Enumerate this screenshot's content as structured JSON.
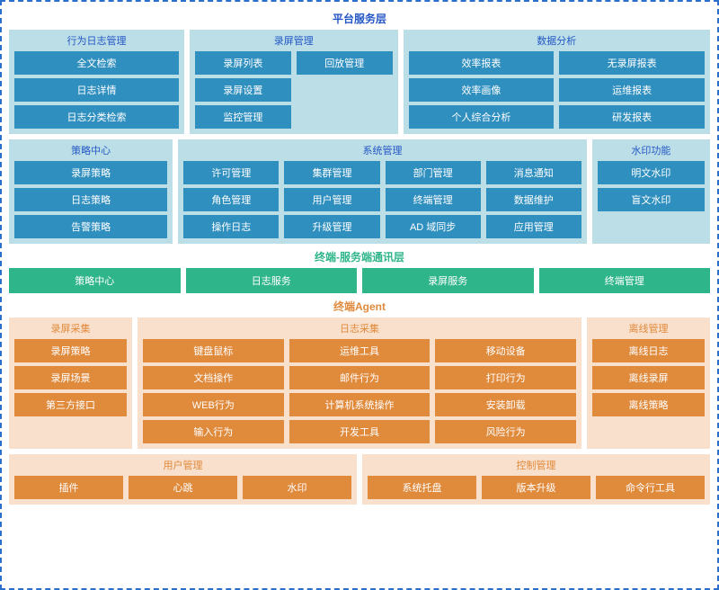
{
  "colors": {
    "border_dash": "#2a6fcc",
    "platform_title": "#2457c5",
    "platform_group_bg": "#bcdfe7",
    "platform_item_bg": "#2f8fbf",
    "terminal_title": "#2fb58a",
    "terminal_item_bg": "#2fb58a",
    "agent_title": "#e08a3c",
    "agent_group_bg": "#f9e0cc",
    "agent_item_bg": "#e08a3c"
  },
  "platform": {
    "title": "平台服务层",
    "row1": [
      {
        "title": "行为日志管理",
        "flex": 1,
        "items": [
          "全文检索",
          "日志详情",
          "日志分类检索"
        ]
      },
      {
        "title": "录屏管理",
        "flex": 1.2,
        "cols": [
          [
            "录屏列表",
            "录屏设置",
            "监控管理"
          ],
          [
            "回放管理"
          ]
        ]
      },
      {
        "title": "数据分析",
        "flex": 1.8,
        "cols": [
          [
            "效率报表",
            "效率画像",
            "个人综合分析"
          ],
          [
            "无录屏报表",
            "运维报表",
            "研发报表"
          ]
        ]
      }
    ],
    "row2": [
      {
        "title": "策略中心",
        "flex": 1,
        "items": [
          "录屏策略",
          "日志策略",
          "告警策略"
        ]
      },
      {
        "title": "系统管理",
        "flex": 2.6,
        "cols": [
          [
            "许可管理",
            "角色管理",
            "操作日志"
          ],
          [
            "集群管理",
            "用户管理",
            "升级管理"
          ],
          [
            "部门管理",
            "终端管理",
            "AD 域同步"
          ],
          [
            "消息通知",
            "数据维护",
            "应用管理"
          ]
        ]
      },
      {
        "title": "水印功能",
        "flex": 0.7,
        "items": [
          "明文水印",
          "盲文水印"
        ]
      }
    ]
  },
  "terminal": {
    "title": "终端-服务端通讯层",
    "items": [
      "策略中心",
      "日志服务",
      "录屏服务",
      "终端管理"
    ]
  },
  "agent": {
    "title": "终端Agent",
    "row1": [
      {
        "title": "录屏采集",
        "flex": 0.7,
        "items": [
          "录屏策略",
          "录屏场景",
          "第三方接口"
        ]
      },
      {
        "title": "日志采集",
        "flex": 2.7,
        "cols": [
          [
            "键盘鼠标",
            "文档操作",
            "WEB行为",
            "输入行为"
          ],
          [
            "运维工具",
            "邮件行为",
            "计算机系统操作",
            "开发工具"
          ],
          [
            "移动设备",
            "打印行为",
            "安装卸载",
            "风险行为"
          ]
        ]
      },
      {
        "title": "离线管理",
        "flex": 0.7,
        "items": [
          "离线日志",
          "离线录屏",
          "离线策略"
        ]
      }
    ],
    "row2": [
      {
        "title": "用户管理",
        "flex": 1.5,
        "row": [
          "插件",
          "心跳",
          "水印"
        ]
      },
      {
        "title": "控制管理",
        "flex": 1.5,
        "row": [
          "系统托盘",
          "版本升级",
          "命令行工具"
        ]
      }
    ]
  }
}
